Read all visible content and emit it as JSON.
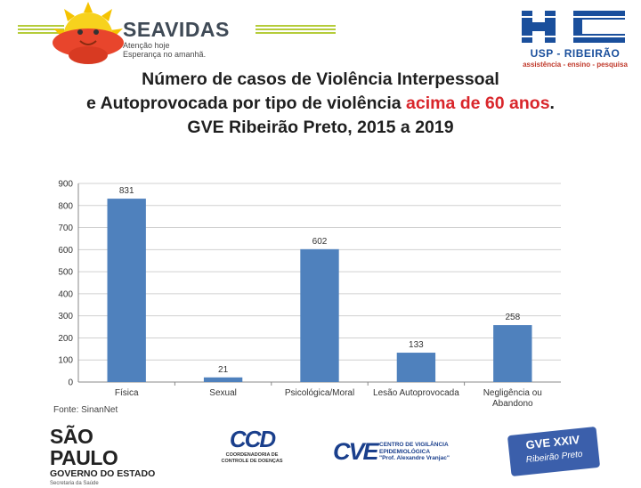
{
  "header": {
    "left_logo": {
      "name": "SEAVIDAS",
      "tagline_1": "Atenção hoje",
      "tagline_2": "Esperança no amanhã."
    },
    "right_logo": {
      "mark": "HC",
      "line_1": "USP - RIBEIRÃO",
      "line_2": "assistência - ensino - pesquisa"
    }
  },
  "title": {
    "line_1": "Número de casos de Violência Interpessoal",
    "line_2_prefix": "e Autoprovocada por tipo de violência ",
    "line_2_highlight": "acima de 60 anos",
    "line_2_suffix": ".",
    "line_3": "GVE Ribeirão Preto, 2015 a 2019",
    "highlight_color": "#d9262b"
  },
  "chart_data": {
    "type": "bar",
    "categories": [
      "Física",
      "Sexual",
      "Psicológica/Moral",
      "Lesão Autoprovocada",
      "Negligência ou Abandono"
    ],
    "values": [
      831,
      21,
      602,
      133,
      258
    ],
    "ylim": [
      0,
      900
    ],
    "yticks": [
      0,
      100,
      200,
      300,
      400,
      500,
      600,
      700,
      800,
      900
    ],
    "grid": true,
    "bar_color": "#4f81bd",
    "title": "",
    "xlabel": "",
    "ylabel": ""
  },
  "source": "Fonte: SinanNet",
  "footer": {
    "sp": {
      "line_1": "SÃO PAULO",
      "line_2": "GOVERNO DO ESTADO",
      "line_3": "Secretaria da Saúde"
    },
    "ccd": {
      "mark": "CCD",
      "line_1": "COORDENADORIA DE",
      "line_2": "CONTROLE DE DOENÇAS"
    },
    "cve": {
      "mark": "CVE",
      "line_1": "CENTRO DE VIGILÂNCIA",
      "line_2": "EPIDEMIOLÓGICA",
      "line_3": "\"Prof. Alexandre Vranjac\""
    },
    "gve": {
      "line_1": "GVE XXIV",
      "line_2": "Ribeirão Preto"
    }
  }
}
